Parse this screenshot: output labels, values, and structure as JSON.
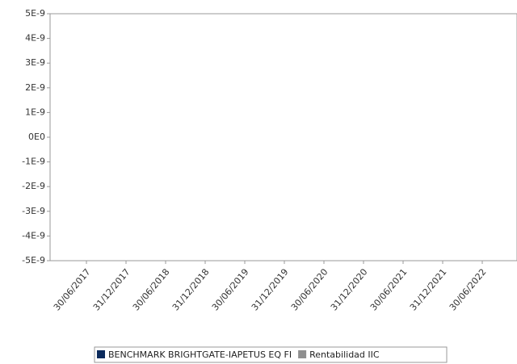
{
  "chart_data": {
    "type": "line",
    "categories": [
      "30/06/2017",
      "31/12/2017",
      "30/06/2018",
      "31/12/2018",
      "30/06/2019",
      "31/12/2019",
      "30/06/2020",
      "31/12/2020",
      "30/06/2021",
      "31/12/2021",
      "30/06/2022"
    ],
    "series": [
      {
        "name": "BENCHMARK BRIGHTGATE-IAPETUS EQ FI",
        "color": "#0b2a5c",
        "values": [
          null,
          null,
          null,
          null,
          null,
          null,
          null,
          null,
          null,
          null,
          null
        ]
      },
      {
        "name": "Rentabilidad IIC",
        "color": "#8f8f8f",
        "values": [
          null,
          null,
          null,
          null,
          null,
          null,
          null,
          null,
          null,
          null,
          null
        ]
      }
    ],
    "ylim": [
      -5e-09,
      5e-09
    ],
    "yticks": [
      {
        "value": 5e-09,
        "label": "5E-9"
      },
      {
        "value": 4e-09,
        "label": "4E-9"
      },
      {
        "value": 3e-09,
        "label": "3E-9"
      },
      {
        "value": 2e-09,
        "label": "2E-9"
      },
      {
        "value": 1e-09,
        "label": "1E-9"
      },
      {
        "value": 0,
        "label": "0E0"
      },
      {
        "value": -1e-09,
        "label": "-1E-9"
      },
      {
        "value": -2e-09,
        "label": "-2E-9"
      },
      {
        "value": -3e-09,
        "label": "-3E-9"
      },
      {
        "value": -4e-09,
        "label": "-4E-9"
      },
      {
        "value": -5e-09,
        "label": "-5E-9"
      }
    ]
  }
}
